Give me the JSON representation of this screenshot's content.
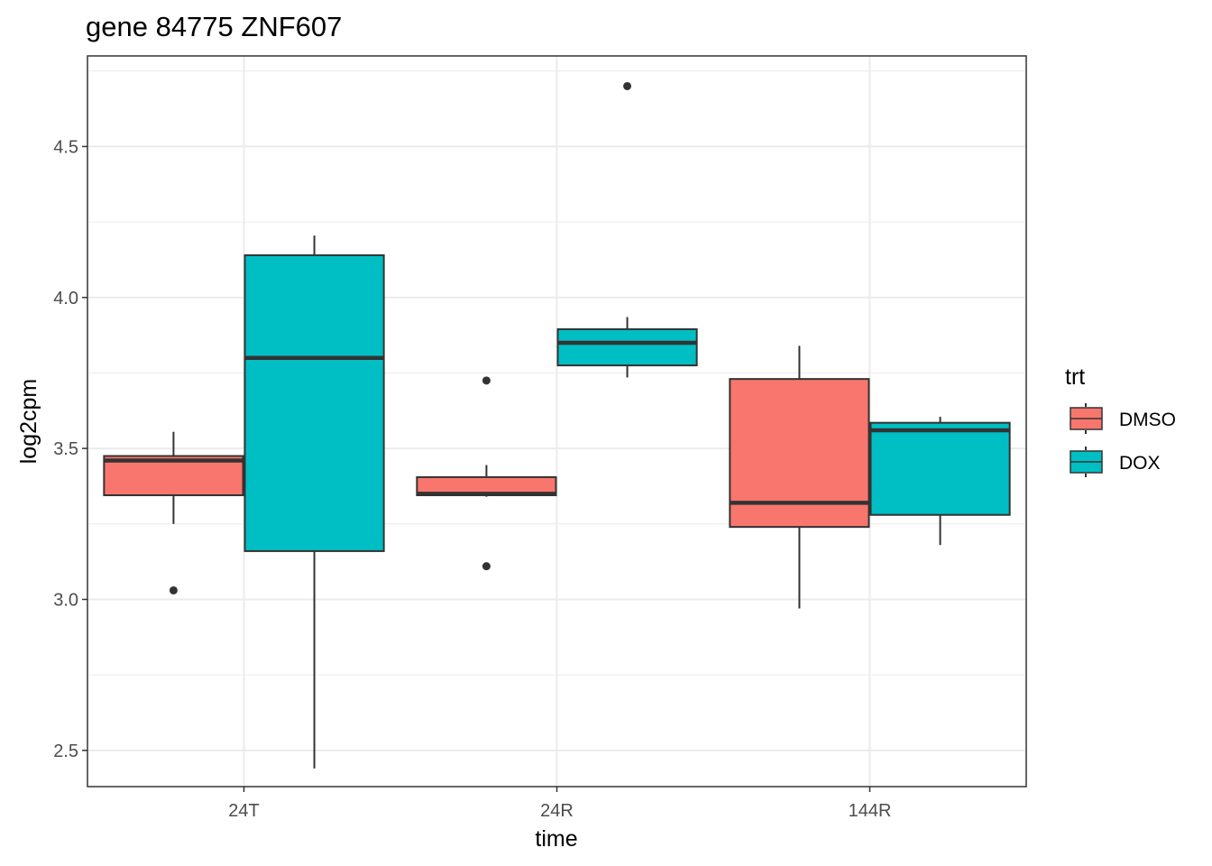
{
  "chart_data": {
    "type": "boxplot",
    "title": "gene 84775 ZNF607",
    "xlabel": "time",
    "ylabel": "log2cpm",
    "categories": [
      "24T",
      "24R",
      "144R"
    ],
    "yticks": [
      "2.5",
      "3.0",
      "3.5",
      "4.0",
      "4.5"
    ],
    "ylim": [
      2.38,
      4.8
    ],
    "grid": true,
    "legend": {
      "title": "trt",
      "position": "right",
      "entries": [
        {
          "label": "DMSO",
          "color": "#F8766D"
        },
        {
          "label": "DOX",
          "color": "#00BFC4"
        }
      ]
    },
    "series": [
      {
        "name": "DMSO",
        "color": "#F8766D",
        "boxes": [
          {
            "category": "24T",
            "whisker_low": 3.25,
            "q1": 3.345,
            "median": 3.46,
            "q3": 3.475,
            "whisker_high": 3.555,
            "outliers": [
              3.03
            ]
          },
          {
            "category": "24R",
            "whisker_low": 3.34,
            "q1": 3.345,
            "median": 3.35,
            "q3": 3.405,
            "whisker_high": 3.445,
            "outliers": [
              3.725,
              3.11
            ]
          },
          {
            "category": "144R",
            "whisker_low": 2.97,
            "q1": 3.24,
            "median": 3.32,
            "q3": 3.73,
            "whisker_high": 3.84,
            "outliers": []
          }
        ]
      },
      {
        "name": "DOX",
        "color": "#00BFC4",
        "boxes": [
          {
            "category": "24T",
            "whisker_low": 2.44,
            "q1": 3.16,
            "median": 3.8,
            "q3": 4.14,
            "whisker_high": 4.205,
            "outliers": []
          },
          {
            "category": "24R",
            "whisker_low": 3.735,
            "q1": 3.775,
            "median": 3.85,
            "q3": 3.895,
            "whisker_high": 3.935,
            "outliers": [
              4.7
            ]
          },
          {
            "category": "144R",
            "whisker_low": 3.18,
            "q1": 3.28,
            "median": 3.56,
            "q3": 3.585,
            "whisker_high": 3.605,
            "outliers": []
          }
        ]
      }
    ]
  }
}
